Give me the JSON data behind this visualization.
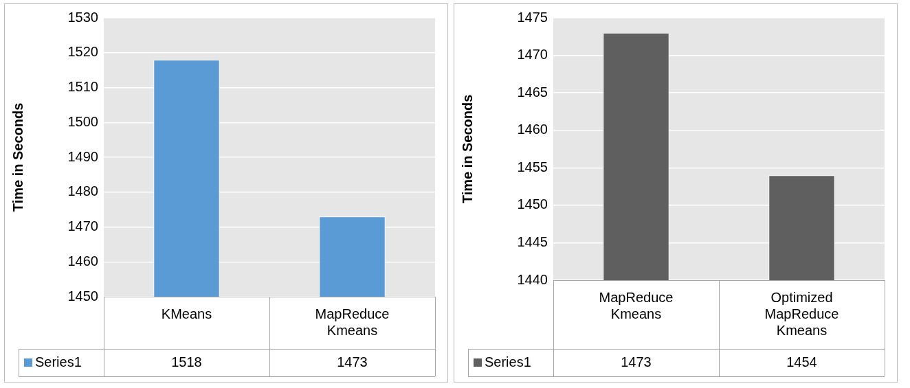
{
  "chart_data": [
    {
      "type": "bar",
      "ylabel": "Time in Seconds",
      "categories": [
        "KMeans",
        "MapReduce Kmeans"
      ],
      "series": [
        {
          "name": "Series1",
          "color": "#5b9bd5",
          "values": [
            1518,
            1473
          ]
        }
      ],
      "ylim": [
        1450,
        1530
      ],
      "yticks": [
        1450,
        1460,
        1470,
        1480,
        1490,
        1500,
        1510,
        1520,
        1530
      ],
      "grid": "y",
      "data_labels": true,
      "legend": "bottom left"
    },
    {
      "type": "bar",
      "ylabel": "Time in Seconds",
      "categories": [
        "MapReduce Kmeans",
        "Optimized MapReduce Kmeans"
      ],
      "series": [
        {
          "name": "Series1",
          "color": "#5f5f5f",
          "values": [
            1473,
            1454
          ]
        }
      ],
      "ylim": [
        1440,
        1475
      ],
      "yticks": [
        1440,
        1445,
        1450,
        1455,
        1460,
        1465,
        1470,
        1475
      ],
      "grid": "y",
      "data_labels": true,
      "legend": "bottom left"
    }
  ]
}
